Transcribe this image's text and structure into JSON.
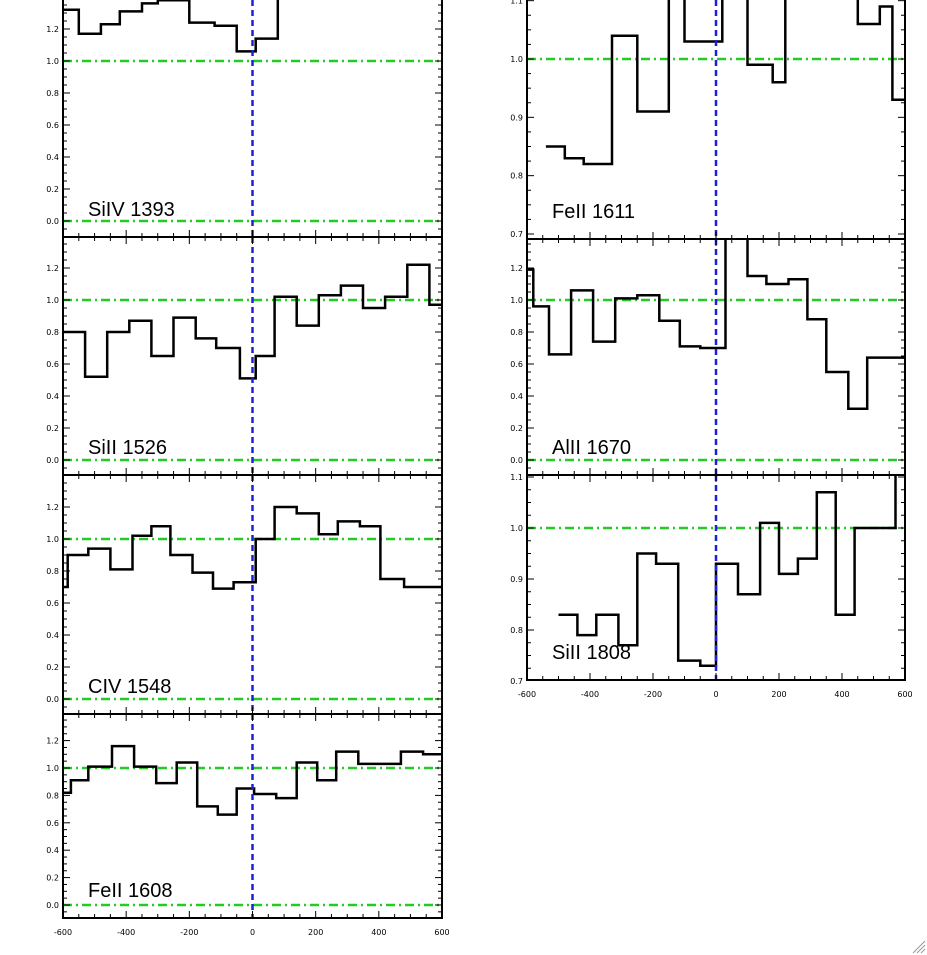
{
  "chart_data": [
    {
      "type": "line",
      "label": "SiIV 1393",
      "xlim": [
        -600,
        600
      ],
      "ylim": [
        -0.1,
        1.4
      ],
      "yticks": [
        0.0,
        0.2,
        0.4,
        0.6,
        0.8,
        1.0,
        1.2
      ],
      "ytick_labels": [
        "0.0",
        "0.2",
        "0.4",
        "0.6",
        "0.8",
        "1.0",
        "1.2"
      ],
      "show_xticklabels": false,
      "hlines": [
        1.0,
        0.0
      ],
      "vline": 0,
      "steps": [
        [
          -600,
          1.32
        ],
        [
          -550,
          1.17
        ],
        [
          -480,
          1.23
        ],
        [
          -420,
          1.31
        ],
        [
          -350,
          1.36
        ],
        [
          -300,
          1.38
        ],
        [
          -200,
          1.24
        ],
        [
          -120,
          1.22
        ],
        [
          -50,
          1.06
        ],
        [
          10,
          1.14
        ],
        [
          80,
          1.4
        ]
      ]
    },
    {
      "type": "line",
      "label": "SiII 1526",
      "xlim": [
        -600,
        600
      ],
      "ylim": [
        -0.1,
        1.4
      ],
      "yticks": [
        0.0,
        0.2,
        0.4,
        0.6,
        0.8,
        1.0,
        1.2
      ],
      "ytick_labels": [
        "0.0",
        "0.2",
        "0.4",
        "0.6",
        "0.8",
        "1.0",
        "1.2"
      ],
      "show_xticklabels": false,
      "hlines": [
        1.0,
        0.0
      ],
      "vline": 0,
      "steps": [
        [
          -600,
          0.8
        ],
        [
          -530,
          0.52
        ],
        [
          -460,
          0.8
        ],
        [
          -390,
          0.87
        ],
        [
          -320,
          0.65
        ],
        [
          -250,
          0.89
        ],
        [
          -180,
          0.76
        ],
        [
          -115,
          0.7
        ],
        [
          -40,
          0.51
        ],
        [
          10,
          0.65
        ],
        [
          70,
          1.02
        ],
        [
          140,
          0.84
        ],
        [
          210,
          1.03
        ],
        [
          280,
          1.09
        ],
        [
          350,
          0.95
        ],
        [
          420,
          1.02
        ],
        [
          490,
          1.22
        ],
        [
          560,
          0.97
        ]
      ]
    },
    {
      "type": "line",
      "label": "CIV 1548",
      "xlim": [
        -600,
        600
      ],
      "ylim": [
        -0.1,
        1.4
      ],
      "yticks": [
        0.0,
        0.2,
        0.4,
        0.6,
        0.8,
        1.0,
        1.2
      ],
      "ytick_labels": [
        "0.0",
        "0.2",
        "0.4",
        "0.6",
        "0.8",
        "1.0",
        "1.2"
      ],
      "show_xticklabels": false,
      "hlines": [
        1.0,
        0.0
      ],
      "vline": 0,
      "steps": [
        [
          -600,
          0.7
        ],
        [
          -585,
          0.9
        ],
        [
          -520,
          0.94
        ],
        [
          -450,
          0.81
        ],
        [
          -380,
          1.02
        ],
        [
          -320,
          1.08
        ],
        [
          -260,
          0.9
        ],
        [
          -190,
          0.79
        ],
        [
          -125,
          0.69
        ],
        [
          -60,
          0.73
        ],
        [
          10,
          1.0
        ],
        [
          70,
          1.2
        ],
        [
          140,
          1.16
        ],
        [
          210,
          1.03
        ],
        [
          270,
          1.11
        ],
        [
          340,
          1.08
        ],
        [
          405,
          0.75
        ],
        [
          480,
          0.7
        ],
        [
          555,
          0.7
        ]
      ]
    },
    {
      "type": "line",
      "label": "FeII 1608",
      "xlim": [
        -600,
        600
      ],
      "ylim": [
        -0.1,
        1.4
      ],
      "yticks": [
        0.0,
        0.2,
        0.4,
        0.6,
        0.8,
        1.0,
        1.2
      ],
      "ytick_labels": [
        "0.0",
        "0.2",
        "0.4",
        "0.6",
        "0.8",
        "1.0",
        "1.2"
      ],
      "show_xticklabels": true,
      "xticks": [
        -600,
        -400,
        -200,
        0,
        200,
        400,
        600
      ],
      "xtick_labels": [
        "-600",
        "-400",
        "-200",
        "0",
        "200",
        "400",
        "600"
      ],
      "hlines": [
        1.0,
        0.0
      ],
      "vline": 0,
      "steps": [
        [
          -600,
          0.82
        ],
        [
          -575,
          0.91
        ],
        [
          -520,
          1.01
        ],
        [
          -445,
          1.16
        ],
        [
          -375,
          1.01
        ],
        [
          -305,
          0.89
        ],
        [
          -240,
          1.04
        ],
        [
          -175,
          0.72
        ],
        [
          -110,
          0.66
        ],
        [
          -50,
          0.85
        ],
        [
          5,
          0.81
        ],
        [
          75,
          0.78
        ],
        [
          140,
          1.04
        ],
        [
          205,
          0.91
        ],
        [
          265,
          1.12
        ],
        [
          335,
          1.03
        ],
        [
          400,
          1.03
        ],
        [
          470,
          1.12
        ],
        [
          540,
          1.1
        ]
      ]
    },
    {
      "type": "line",
      "label": "FeII 1611",
      "xlim": [
        -600,
        600
      ],
      "ylim": [
        0.7,
        1.1
      ],
      "yticks": [
        0.7,
        0.8,
        0.9,
        1.0,
        1.1
      ],
      "ytick_labels": [
        "0.7",
        "0.8",
        "0.9",
        "1.0",
        "1.1"
      ],
      "show_xticklabels": false,
      "hlines": [
        1.0
      ],
      "vline": 0,
      "steps": [
        [
          -540,
          0.85
        ],
        [
          -480,
          0.83
        ],
        [
          -420,
          0.82
        ],
        [
          -330,
          1.04
        ],
        [
          -250,
          0.91
        ],
        [
          -150,
          1.13
        ],
        [
          -100,
          1.03
        ],
        [
          20,
          1.15
        ],
        [
          100,
          0.99
        ],
        [
          180,
          0.96
        ],
        [
          220,
          1.15
        ],
        [
          420,
          1.15
        ],
        [
          450,
          1.06
        ],
        [
          520,
          1.09
        ],
        [
          560,
          0.93
        ]
      ]
    },
    {
      "type": "line",
      "label": "AlII 1670",
      "xlim": [
        -600,
        600
      ],
      "ylim": [
        -0.1,
        1.4
      ],
      "yticks": [
        0.0,
        0.2,
        0.4,
        0.6,
        0.8,
        1.0,
        1.2
      ],
      "ytick_labels": [
        "0.0",
        "0.2",
        "0.4",
        "0.6",
        "0.8",
        "1.0",
        "1.2"
      ],
      "show_xticklabels": false,
      "hlines": [
        1.0,
        0.0
      ],
      "vline": 0,
      "steps": [
        [
          -600,
          1.19
        ],
        [
          -580,
          0.96
        ],
        [
          -530,
          0.66
        ],
        [
          -460,
          1.06
        ],
        [
          -390,
          0.74
        ],
        [
          -320,
          1.01
        ],
        [
          -250,
          1.03
        ],
        [
          -180,
          0.87
        ],
        [
          -115,
          0.71
        ],
        [
          -50,
          0.7
        ],
        [
          30,
          1.45
        ],
        [
          100,
          1.15
        ],
        [
          160,
          1.1
        ],
        [
          230,
          1.13
        ],
        [
          290,
          0.88
        ],
        [
          350,
          0.55
        ],
        [
          420,
          0.32
        ],
        [
          480,
          0.64
        ],
        [
          540,
          0.64
        ]
      ]
    },
    {
      "type": "line",
      "label": "SiII 1808",
      "xlim": [
        -600,
        600
      ],
      "ylim": [
        0.7,
        1.1
      ],
      "yticks": [
        0.7,
        0.8,
        0.9,
        1.0,
        1.1
      ],
      "ytick_labels": [
        "0.7",
        "0.8",
        "0.9",
        "1.0",
        "1.1"
      ],
      "show_xticklabels": true,
      "xticks": [
        -600,
        -400,
        -200,
        0,
        200,
        400,
        600
      ],
      "xtick_labels": [
        "-600",
        "-400",
        "-200",
        "0",
        "200",
        "400",
        "600"
      ],
      "hlines": [
        1.0
      ],
      "vline": 0,
      "steps": [
        [
          -500,
          0.83
        ],
        [
          -440,
          0.79
        ],
        [
          -380,
          0.83
        ],
        [
          -310,
          0.77
        ],
        [
          -250,
          0.95
        ],
        [
          -190,
          0.93
        ],
        [
          -120,
          0.74
        ],
        [
          -50,
          0.73
        ],
        [
          0,
          0.93
        ],
        [
          70,
          0.87
        ],
        [
          140,
          1.01
        ],
        [
          200,
          0.91
        ],
        [
          260,
          0.94
        ],
        [
          320,
          1.07
        ],
        [
          380,
          0.83
        ],
        [
          440,
          1.0
        ],
        [
          500,
          1.0
        ],
        [
          570,
          1.12
        ]
      ]
    }
  ]
}
